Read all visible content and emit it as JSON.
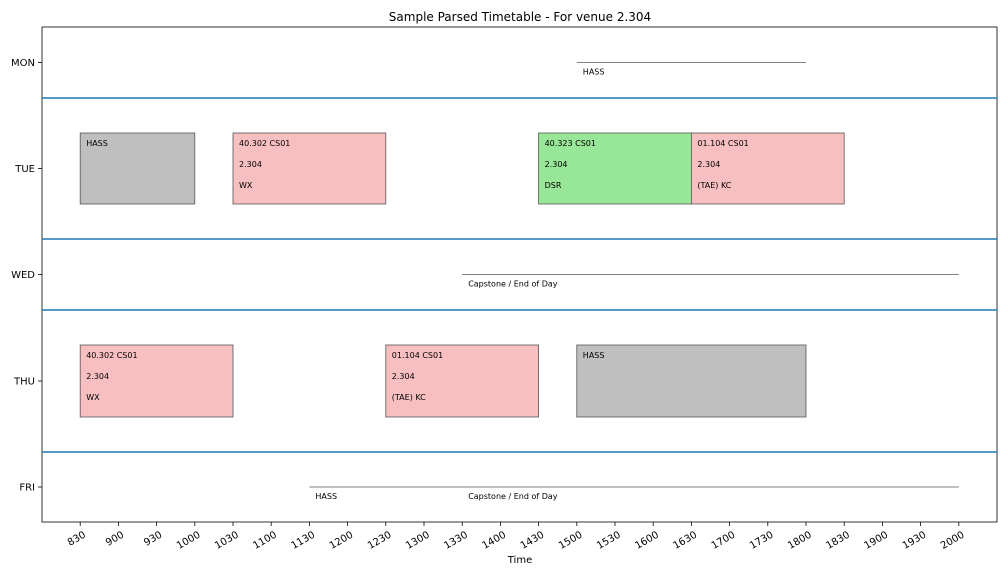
{
  "chart_data": {
    "type": "timetable",
    "title": "Sample Parsed Timetable - For venue 2.304",
    "xlabel": "Time",
    "ylabel": "",
    "xlim": [
      "0800",
      "2030"
    ],
    "day_order": [
      "MON",
      "TUE",
      "WED",
      "THU",
      "FRI"
    ],
    "x_ticks": [
      "830",
      "900",
      "930",
      "1000",
      "1030",
      "1100",
      "1130",
      "1200",
      "1230",
      "1300",
      "1330",
      "1400",
      "1430",
      "1500",
      "1530",
      "1600",
      "1630",
      "1700",
      "1730",
      "1800",
      "1830",
      "1900",
      "1930",
      "2000"
    ],
    "x_tick_labels": [
      "830",
      "900",
      "930",
      "1000",
      "1030",
      "1100",
      "1130",
      "1200",
      "1230",
      "1300",
      "1330",
      "1400",
      "1430",
      "1500",
      "1530",
      "1600",
      "1630",
      "1700",
      "1730",
      "1800",
      "1830",
      "1900",
      "1930",
      "2000"
    ],
    "separator_color": "#1f77b4",
    "colors": {
      "gray": "#bfbfbf",
      "pink": "#f8bfc0",
      "green": "#98e698",
      "line": "#808080"
    },
    "events": [
      {
        "day": "MON",
        "kind": "line",
        "start": "1500",
        "end": "1800",
        "lines": [
          "HASS"
        ]
      },
      {
        "day": "TUE",
        "kind": "box",
        "start": "830",
        "end": "1000",
        "color": "gray",
        "lines": [
          "HASS"
        ]
      },
      {
        "day": "TUE",
        "kind": "box",
        "start": "1030",
        "end": "1230",
        "color": "pink",
        "lines": [
          "40.302 CS01",
          "2.304",
          "WX"
        ]
      },
      {
        "day": "TUE",
        "kind": "box",
        "start": "1430",
        "end": "1630",
        "color": "green",
        "lines": [
          "40.323 CS01",
          "2.304",
          "DSR"
        ]
      },
      {
        "day": "TUE",
        "kind": "box",
        "start": "1630",
        "end": "1830",
        "color": "pink",
        "lines": [
          "01.104 CS01",
          "2.304",
          "(TAE) KC"
        ]
      },
      {
        "day": "WED",
        "kind": "line",
        "start": "1330",
        "end": "2000",
        "lines": [
          "Capstone / End of Day"
        ]
      },
      {
        "day": "THU",
        "kind": "box",
        "start": "830",
        "end": "1030",
        "color": "pink",
        "lines": [
          "40.302 CS01",
          "2.304",
          "WX"
        ]
      },
      {
        "day": "THU",
        "kind": "box",
        "start": "1230",
        "end": "1430",
        "color": "pink",
        "lines": [
          "01.104 CS01",
          "2.304",
          "(TAE) KC"
        ]
      },
      {
        "day": "THU",
        "kind": "box",
        "start": "1500",
        "end": "1800",
        "color": "gray",
        "lines": [
          "HASS"
        ]
      },
      {
        "day": "FRI",
        "kind": "line",
        "start": "1130",
        "end": "2000",
        "lines": [
          "HASS"
        ]
      },
      {
        "day": "FRI",
        "kind": "line",
        "start": "1330",
        "end": "2000",
        "lines": [
          "Capstone / End of Day"
        ]
      }
    ]
  }
}
